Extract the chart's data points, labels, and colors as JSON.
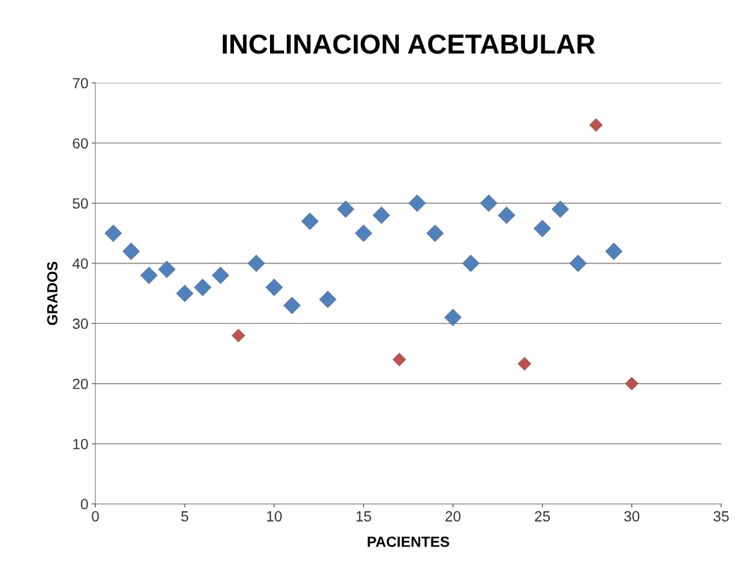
{
  "chart_data": {
    "type": "scatter",
    "title": "INCLINACION ACETABULAR",
    "xlabel": "PACIENTES",
    "ylabel": "GRADOS",
    "xlim": [
      0,
      35
    ],
    "xticks": [
      0,
      5,
      10,
      15,
      20,
      25,
      30,
      35
    ],
    "ylim": [
      0,
      70
    ],
    "yticks": [
      0,
      10,
      20,
      30,
      40,
      50,
      60,
      70
    ],
    "grid": "y",
    "marker": "diamond",
    "legend": false,
    "series": [
      {
        "color": "#4f81bd",
        "x": [
          1,
          2,
          3,
          4,
          5,
          6,
          7,
          9,
          10,
          11,
          12,
          13,
          14,
          15,
          16,
          18,
          19,
          20,
          21,
          22,
          23,
          25,
          26,
          27,
          29
        ],
        "values": [
          45,
          42,
          38,
          39,
          35,
          36,
          38,
          40,
          36,
          33,
          47,
          34,
          49,
          45,
          48,
          50,
          45,
          31,
          40,
          50,
          48,
          45.8,
          49,
          40,
          42
        ]
      },
      {
        "color": "#c0504d",
        "x": [
          8,
          17,
          24,
          28,
          30
        ],
        "values": [
          28,
          24,
          23.3,
          63,
          20
        ]
      }
    ]
  }
}
